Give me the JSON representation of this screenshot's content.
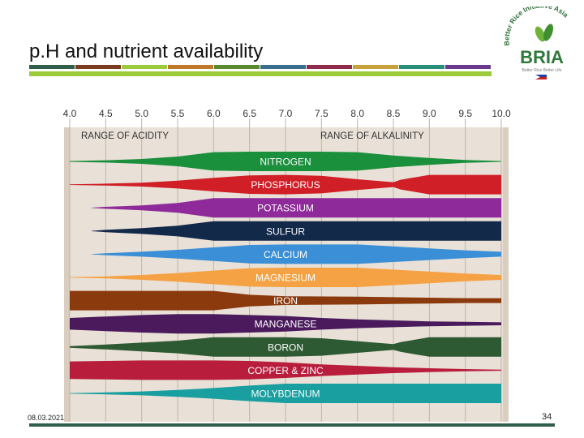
{
  "slide": {
    "title": "p.H and nutrient availability",
    "date": "08.03.2021",
    "page_number": "34"
  },
  "logo": {
    "brand": "BRIA",
    "arc_text": "Better Rice Initiative Asia",
    "tagline": "Better Rice Better Life"
  },
  "header_bar_colors": [
    "#2f5f4a",
    "#7a3b1f",
    "#9ccc3c",
    "#c0782a",
    "#5b8a2e",
    "#3a6e8f",
    "#8f2a4a",
    "#c7a13a",
    "#2a8f7a",
    "#6a3a8f"
  ],
  "chart_data": {
    "type": "diagram",
    "ph_ticks": [
      "4.0",
      "4.5",
      "5.0",
      "5.5",
      "6.0",
      "6.5",
      "7.0",
      "7.5",
      "8.0",
      "8.5",
      "9.0",
      "9.5",
      "10.0"
    ],
    "range_labels": {
      "acidity": "RANGE OF ACIDITY",
      "alkalinity": "RANGE OF ALKALINITY"
    },
    "nutrients": [
      {
        "name": "NITROGEN",
        "color": "#1a8f3c",
        "profile": [
          [
            4.0,
            0.04
          ],
          [
            4.5,
            0.12
          ],
          [
            5.0,
            0.25
          ],
          [
            5.5,
            0.5
          ],
          [
            6.0,
            0.95
          ],
          [
            6.5,
            1.0
          ],
          [
            7.0,
            1.0
          ],
          [
            7.5,
            1.0
          ],
          [
            8.0,
            0.95
          ],
          [
            8.5,
            0.6
          ],
          [
            9.0,
            0.35
          ],
          [
            9.5,
            0.15
          ],
          [
            10.0,
            0.04
          ]
        ]
      },
      {
        "name": "PHOSPHORUS",
        "color": "#d01f26",
        "profile": [
          [
            4.0,
            0.03
          ],
          [
            4.5,
            0.1
          ],
          [
            5.0,
            0.2
          ],
          [
            5.5,
            0.4
          ],
          [
            6.0,
            0.7
          ],
          [
            6.5,
            0.95
          ],
          [
            7.0,
            1.0
          ],
          [
            7.5,
            0.9
          ],
          [
            8.0,
            0.55
          ],
          [
            8.5,
            0.25
          ],
          [
            8.6,
            0.5
          ],
          [
            9.0,
            1.0
          ],
          [
            10.0,
            1.0
          ]
        ]
      },
      {
        "name": "POTASSIUM",
        "color": "#8e2a9a",
        "profile": [
          [
            4.3,
            0.02
          ],
          [
            4.5,
            0.1
          ],
          [
            5.0,
            0.25
          ],
          [
            5.5,
            0.5
          ],
          [
            6.0,
            1.0
          ],
          [
            10.0,
            1.0
          ]
        ]
      },
      {
        "name": "SULFUR",
        "color": "#12294a",
        "profile": [
          [
            4.3,
            0.02
          ],
          [
            4.5,
            0.12
          ],
          [
            5.0,
            0.3
          ],
          [
            5.5,
            0.55
          ],
          [
            6.0,
            1.0
          ],
          [
            10.0,
            1.0
          ]
        ]
      },
      {
        "name": "CALCIUM",
        "color": "#3a8fd6",
        "profile": [
          [
            4.3,
            0.02
          ],
          [
            4.5,
            0.1
          ],
          [
            5.0,
            0.25
          ],
          [
            5.5,
            0.45
          ],
          [
            6.0,
            0.7
          ],
          [
            6.5,
            0.95
          ],
          [
            7.0,
            1.0
          ],
          [
            8.0,
            1.0
          ],
          [
            8.5,
            0.8
          ],
          [
            9.0,
            0.6
          ],
          [
            9.5,
            0.4
          ],
          [
            10.0,
            0.25
          ]
        ]
      },
      {
        "name": "MAGNESIUM",
        "color": "#f5a244",
        "profile": [
          [
            4.0,
            0.03
          ],
          [
            4.5,
            0.1
          ],
          [
            5.0,
            0.25
          ],
          [
            5.5,
            0.45
          ],
          [
            6.0,
            0.7
          ],
          [
            6.5,
            0.95
          ],
          [
            7.0,
            1.0
          ],
          [
            8.0,
            1.0
          ],
          [
            8.5,
            0.8
          ],
          [
            9.0,
            0.6
          ],
          [
            9.5,
            0.4
          ],
          [
            10.0,
            0.25
          ]
        ]
      },
      {
        "name": "IRON",
        "color": "#8a3a0c",
        "profile": [
          [
            4.0,
            1.0
          ],
          [
            5.0,
            1.0
          ],
          [
            5.5,
            1.0
          ],
          [
            6.0,
            1.0
          ],
          [
            6.5,
            0.6
          ],
          [
            7.0,
            0.45
          ],
          [
            8.0,
            0.4
          ],
          [
            8.5,
            0.35
          ],
          [
            9.0,
            0.3
          ],
          [
            9.5,
            0.25
          ],
          [
            10.0,
            0.25
          ]
        ]
      },
      {
        "name": "MANGANESE",
        "color": "#4a1a5c",
        "profile": [
          [
            4.0,
            0.6
          ],
          [
            4.5,
            0.75
          ],
          [
            5.0,
            0.9
          ],
          [
            5.5,
            1.0
          ],
          [
            6.0,
            1.0
          ],
          [
            6.5,
            0.9
          ],
          [
            7.0,
            0.8
          ],
          [
            7.5,
            0.6
          ],
          [
            8.0,
            0.45
          ],
          [
            8.5,
            0.35
          ],
          [
            9.0,
            0.25
          ],
          [
            9.5,
            0.2
          ],
          [
            10.0,
            0.15
          ]
        ]
      },
      {
        "name": "BORON",
        "color": "#2e5a33",
        "profile": [
          [
            4.0,
            0.08
          ],
          [
            4.5,
            0.25
          ],
          [
            5.0,
            0.45
          ],
          [
            5.5,
            0.65
          ],
          [
            6.0,
            1.0
          ],
          [
            7.0,
            1.0
          ],
          [
            7.5,
            0.9
          ],
          [
            8.0,
            0.6
          ],
          [
            8.5,
            0.3
          ],
          [
            8.6,
            0.5
          ],
          [
            9.0,
            1.0
          ],
          [
            10.0,
            1.0
          ]
        ]
      },
      {
        "name": "COPPER & ZINC",
        "color": "#b81e3c",
        "profile": [
          [
            4.0,
            0.9
          ],
          [
            4.5,
            0.95
          ],
          [
            5.0,
            1.0
          ],
          [
            6.0,
            1.0
          ],
          [
            6.5,
            0.95
          ],
          [
            7.0,
            0.8
          ],
          [
            7.5,
            0.6
          ],
          [
            8.0,
            0.45
          ],
          [
            8.5,
            0.3
          ],
          [
            9.0,
            0.2
          ],
          [
            9.5,
            0.12
          ],
          [
            10.0,
            0.06
          ]
        ]
      },
      {
        "name": "MOLYBDENUM",
        "color": "#1a9fa0",
        "profile": [
          [
            4.0,
            0.03
          ],
          [
            4.5,
            0.1
          ],
          [
            5.0,
            0.2
          ],
          [
            5.5,
            0.35
          ],
          [
            6.0,
            0.55
          ],
          [
            6.5,
            0.8
          ],
          [
            7.0,
            1.0
          ],
          [
            10.0,
            1.0
          ]
        ]
      }
    ]
  }
}
